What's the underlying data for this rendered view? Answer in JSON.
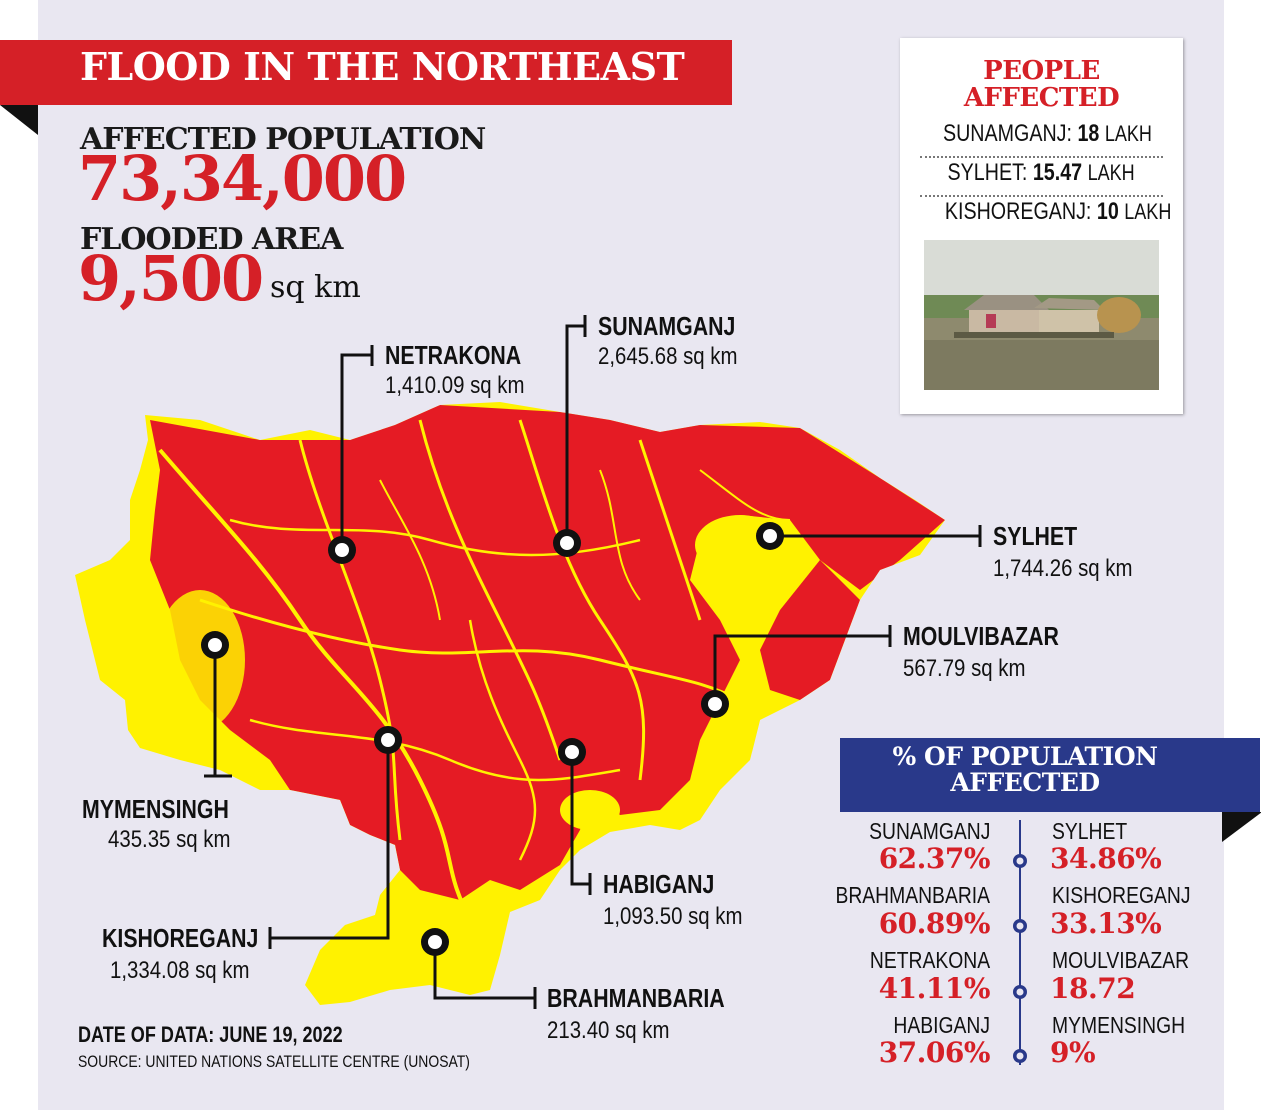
{
  "title": "FLOOD IN THE NORTHEAST",
  "stats": {
    "population_label": "AFFECTED POPULATION",
    "population_value": "73,34,000",
    "area_label": "FLOODED AREA",
    "area_value": "9,500",
    "area_unit": "sq km"
  },
  "map_colors": {
    "flooded": "#e51b24",
    "land": "#fff200",
    "background": "#e9e7f1"
  },
  "districts": [
    {
      "name": "NETRAKONA",
      "area": "1,410.09 sq km"
    },
    {
      "name": "SUNAMGANJ",
      "area": "2,645.68 sq km"
    },
    {
      "name": "SYLHET",
      "area": "1,744.26 sq km"
    },
    {
      "name": "MOULVIBAZAR",
      "area": "567.79 sq km"
    },
    {
      "name": "MYMENSINGH",
      "area": "435.35 sq km"
    },
    {
      "name": "HABIGANJ",
      "area": "1,093.50 sq km"
    },
    {
      "name": "KISHOREGANJ",
      "area": "1,334.08 sq km"
    },
    {
      "name": "BRAHMANBARIA",
      "area": "213.40 sq km"
    }
  ],
  "people_affected": {
    "title_line1": "PEOPLE",
    "title_line2": "AFFECTED",
    "rows": [
      {
        "name": "SUNAMGANJ:",
        "value": "18",
        "unit": "LAKH"
      },
      {
        "name": "SYLHET:",
        "value": "15.47",
        "unit": "LAKH"
      },
      {
        "name": "KISHOREGANJ:",
        "value": "10",
        "unit": "LAKH"
      }
    ]
  },
  "percent_panel": {
    "title_line1": "% OF POPULATION",
    "title_line2": "AFFECTED",
    "left": [
      {
        "name": "SUNAMGANJ",
        "value": "62.37%"
      },
      {
        "name": "BRAHMANBARIA",
        "value": "60.89%"
      },
      {
        "name": "NETRAKONA",
        "value": "41.11%"
      },
      {
        "name": "HABIGANJ",
        "value": "37.06%"
      }
    ],
    "right": [
      {
        "name": "SYLHET",
        "value": "34.86%"
      },
      {
        "name": "KISHOREGANJ",
        "value": "33.13%"
      },
      {
        "name": "MOULVIBAZAR",
        "value": "18.72"
      },
      {
        "name": "MYMENSINGH",
        "value": "9%"
      }
    ]
  },
  "footer": {
    "date": "DATE OF DATA: JUNE 19, 2022",
    "source": "SOURCE: UNITED NATIONS SATELLITE CENTRE (UNOSAT)"
  }
}
